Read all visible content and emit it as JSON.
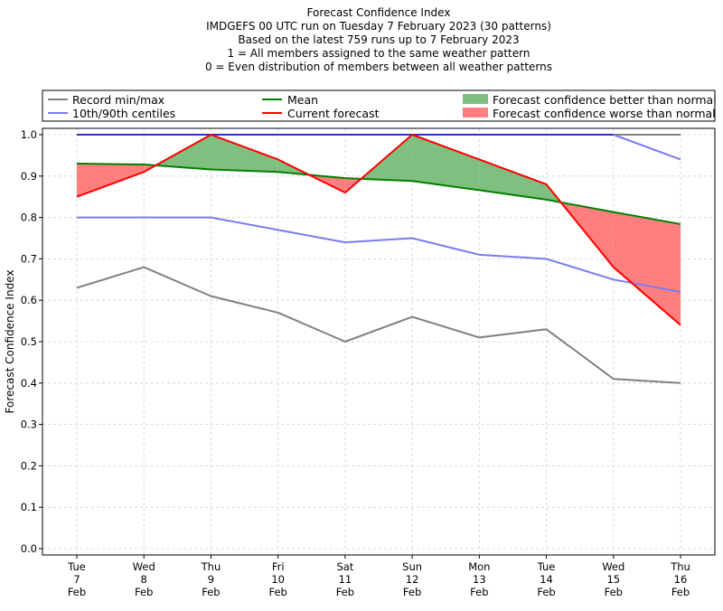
{
  "titles": [
    "Forecast Confidence Index",
    "IMDGEFS 00 UTC run on Tuesday 7 February 2023 (30 patterns)",
    "Based on the latest 759 runs up to 7 February 2023",
    "1 = All members assigned to the same weather pattern",
    "0 = Even distribution of members between all weather patterns"
  ],
  "legend": {
    "record": "Record min/max",
    "centiles": "10th/90th centiles",
    "mean": "Mean",
    "current": "Current forecast",
    "better": "Forecast confidence better than normal",
    "worse": "Forecast confidence worse than normal"
  },
  "colors": {
    "record": "#808080",
    "centiles": "#7b7bf0",
    "max_line": "#3030d0",
    "mean": "#008000",
    "current": "#ff0000",
    "better_fill": "#7fbf7f",
    "worse_fill": "#ff7f7f",
    "grid": "#cfcfcf"
  },
  "chart_data": {
    "type": "line",
    "title": "Forecast Confidence Index",
    "xlabel": "",
    "ylabel": "Forecast Confidence Index",
    "ylim": [
      0.0,
      1.0
    ],
    "yticks": [
      "0.0",
      "0.1",
      "0.2",
      "0.3",
      "0.4",
      "0.5",
      "0.6",
      "0.7",
      "0.8",
      "0.9",
      "1.0"
    ],
    "grid": true,
    "legend_position": "top",
    "categories": [
      [
        "Tue",
        "7",
        "Feb"
      ],
      [
        "Wed",
        "8",
        "Feb"
      ],
      [
        "Thu",
        "9",
        "Feb"
      ],
      [
        "Fri",
        "10",
        "Feb"
      ],
      [
        "Sat",
        "11",
        "Feb"
      ],
      [
        "Sun",
        "12",
        "Feb"
      ],
      [
        "Mon",
        "13",
        "Feb"
      ],
      [
        "Tue",
        "14",
        "Feb"
      ],
      [
        "Wed",
        "15",
        "Feb"
      ],
      [
        "Thu",
        "16",
        "Feb"
      ]
    ],
    "series": [
      {
        "name": "Record min/max",
        "role": "record_min",
        "values": [
          0.63,
          0.68,
          0.61,
          0.57,
          0.5,
          0.56,
          0.51,
          0.53,
          0.41,
          0.4
        ]
      },
      {
        "name": "Record min/max",
        "role": "record_max",
        "values": [
          1.0,
          1.0,
          1.0,
          1.0,
          1.0,
          1.0,
          1.0,
          1.0,
          1.0,
          1.0
        ]
      },
      {
        "name": "10th/90th centiles",
        "role": "p10",
        "values": [
          0.8,
          0.8,
          0.8,
          0.77,
          0.74,
          0.75,
          0.71,
          0.7,
          0.65,
          0.62
        ]
      },
      {
        "name": "10th/90th centiles",
        "role": "p90",
        "values": [
          1.0,
          1.0,
          1.0,
          1.0,
          1.0,
          1.0,
          1.0,
          1.0,
          1.0,
          0.94
        ]
      },
      {
        "name": "Mean",
        "role": "mean",
        "values": [
          0.93,
          0.928,
          0.916,
          0.91,
          0.895,
          0.888,
          0.866,
          0.843,
          0.813,
          0.784
        ]
      },
      {
        "name": "Current forecast",
        "role": "current",
        "values": [
          0.85,
          0.91,
          1.0,
          0.94,
          0.86,
          1.0,
          0.94,
          0.88,
          0.68,
          0.54
        ]
      }
    ]
  }
}
